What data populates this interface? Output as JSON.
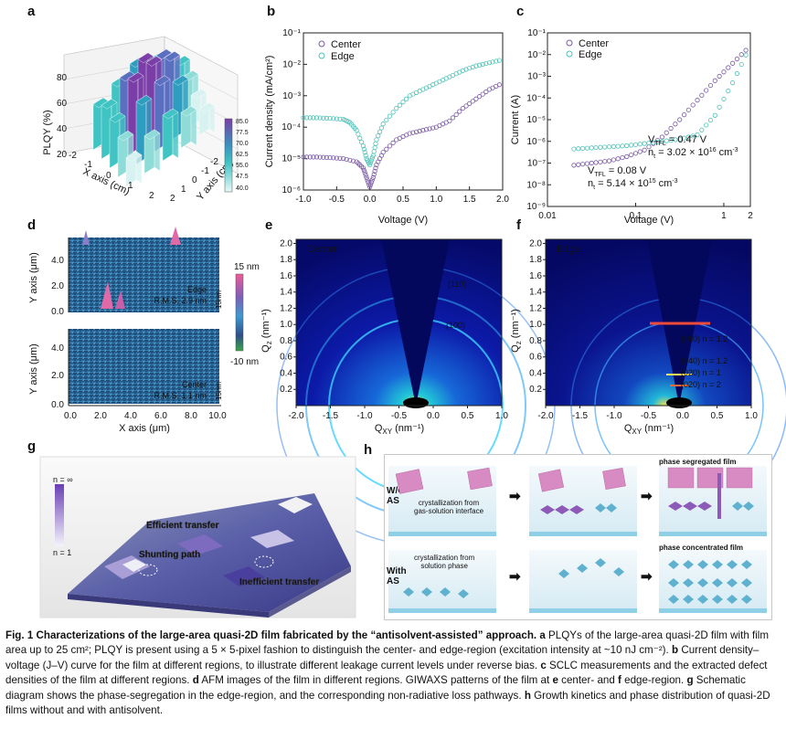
{
  "panels": {
    "a": "a",
    "b": "b",
    "c": "c",
    "d": "d",
    "e": "e",
    "f": "f",
    "g": "g",
    "h": "h"
  },
  "panel_a": {
    "zlabel": "PLQY (%)",
    "xlabel": "X axis (cm)",
    "ylabel": "Y axis (cm)",
    "zticks": [
      "20",
      "40",
      "60",
      "80"
    ],
    "xticks": [
      "-2",
      "-1",
      "0",
      "1",
      "2"
    ],
    "yticks": [
      "-2",
      "-1",
      "0",
      "1",
      "2"
    ],
    "colorbar_ticks": [
      "85.0",
      "77.5",
      "70.0",
      "62.5",
      "55.0",
      "47.5",
      "40.0"
    ],
    "colors": {
      "low": "#e2f5f6",
      "mid": "#3fc3c3",
      "high": "#7b3ea8"
    }
  },
  "chart_data": [
    {
      "type": "line",
      "panel": "b",
      "title": "",
      "xlabel": "Voltage (V)",
      "ylabel": "Current density (mA/cm²)",
      "xlim": [
        -1.0,
        2.0
      ],
      "ylim_log10": [
        -6,
        -1
      ],
      "xticks": [
        "-1.0",
        "-0.5",
        "0.0",
        "0.5",
        "1.0",
        "1.5",
        "2.0"
      ],
      "yticks": [
        "10⁻⁶",
        "10⁻⁵",
        "10⁻⁴",
        "10⁻³",
        "10⁻²",
        "10⁻¹"
      ],
      "series": [
        {
          "name": "Center",
          "color": "#7b5aa6",
          "x": [
            -1.0,
            -0.8,
            -0.6,
            -0.4,
            -0.2,
            -0.1,
            -0.05,
            0.0,
            0.05,
            0.1,
            0.2,
            0.4,
            0.6,
            0.8,
            1.0,
            1.2,
            1.4,
            1.6,
            1.8,
            2.0
          ],
          "log10y": [
            -4.95,
            -4.95,
            -4.97,
            -5.0,
            -5.1,
            -5.3,
            -5.6,
            -5.9,
            -5.6,
            -5.2,
            -4.8,
            -4.4,
            -4.2,
            -4.1,
            -4.0,
            -3.8,
            -3.4,
            -3.1,
            -2.8,
            -2.6
          ]
        },
        {
          "name": "Edge",
          "color": "#4fc3b8",
          "x": [
            -1.0,
            -0.8,
            -0.6,
            -0.4,
            -0.3,
            -0.2,
            -0.1,
            -0.05,
            0.0,
            0.05,
            0.1,
            0.2,
            0.4,
            0.6,
            0.8,
            1.0,
            1.2,
            1.4,
            1.6,
            1.8,
            2.0
          ],
          "log10y": [
            -3.7,
            -3.7,
            -3.72,
            -3.75,
            -3.85,
            -4.1,
            -4.6,
            -5.0,
            -5.2,
            -4.9,
            -4.4,
            -3.9,
            -3.4,
            -3.0,
            -2.8,
            -2.6,
            -2.4,
            -2.2,
            -2.05,
            -1.95,
            -1.85
          ]
        }
      ],
      "legend": [
        "Center",
        "Edge"
      ]
    },
    {
      "type": "line",
      "panel": "c",
      "xlabel": "Voltage (V)",
      "ylabel": "Current (A)",
      "xlim_log10": [
        -2,
        0.301
      ],
      "ylim_log10": [
        -9,
        -1
      ],
      "xticks": [
        "0.01",
        "0.1",
        "1",
        "2"
      ],
      "yticks": [
        "10⁻⁹",
        "10⁻⁸",
        "10⁻⁷",
        "10⁻⁶",
        "10⁻⁵",
        "10⁻⁴",
        "10⁻³",
        "10⁻²",
        "10⁻¹"
      ],
      "series": [
        {
          "name": "Center",
          "color": "#7b5aa6",
          "log10x": [
            -1.7,
            -1.5,
            -1.3,
            -1.1,
            -0.9,
            -0.7,
            -0.5,
            -0.3,
            -0.1,
            0.1,
            0.3
          ],
          "log10y": [
            -7.1,
            -7.0,
            -6.9,
            -6.7,
            -6.4,
            -5.8,
            -5.0,
            -4.1,
            -3.2,
            -2.4,
            -1.6
          ]
        },
        {
          "name": "Edge",
          "color": "#4fc3b8",
          "log10x": [
            -1.7,
            -1.5,
            -1.3,
            -1.1,
            -0.9,
            -0.7,
            -0.5,
            -0.3,
            -0.1,
            0.1,
            0.3
          ],
          "log10y": [
            -6.35,
            -6.3,
            -6.25,
            -6.2,
            -6.1,
            -6.0,
            -5.9,
            -5.7,
            -4.8,
            -3.3,
            -1.6
          ]
        }
      ],
      "legend": [
        "Center",
        "Edge"
      ],
      "annotations": [
        {
          "text1": "V",
          "sub1": "TFL",
          "text2": " = 0.47 V",
          "text3": "n",
          "sub3": "t",
          "text4": " = 3.02 × 10",
          "sup4": "16",
          "text5": " cm",
          "sup5": "-3",
          "color": "#4fc3b8"
        },
        {
          "text1": "V",
          "sub1": "TFL",
          "text2": " = 0.08 V",
          "text3": "n",
          "sub3": "t",
          "text4": " = 5.14 × 10",
          "sup4": "15",
          "text5": " cm",
          "sup5": "-3",
          "color": "#7b5aa6"
        }
      ]
    }
  ],
  "panel_d": {
    "top": {
      "label": "Edge",
      "rms": "R.M.S. 2.9 nm"
    },
    "bottom": {
      "label": "Center",
      "rms": "R.M.S. 1.1 nm"
    },
    "ylabel": "Y axis (μm)",
    "xlabel": "X axis (μm)",
    "yticks": [
      "0.0",
      "2.0",
      "4.0"
    ],
    "xticks": [
      "0.0",
      "2.0",
      "4.0",
      "6.0",
      "8.0",
      "10.0"
    ],
    "scale": "15nm",
    "colorbar_top": "15 nm",
    "colorbar_bottom": "-10 nm"
  },
  "panel_e": {
    "tag": "Center",
    "ylabel": "Q",
    "ysub": "z",
    "yunit": " (nm⁻¹)",
    "xlabel": "Q",
    "xsub": "XY",
    "xunit": " (nm⁻¹)",
    "yticks": [
      "0.2",
      "0.4",
      "0.6",
      "0.8",
      "1.0",
      "1.2",
      "1.4",
      "1.6",
      "1.8",
      "2.0"
    ],
    "xticks": [
      "-2.0",
      "-1.5",
      "-1.0",
      "-0.5",
      "0.0",
      "0.5",
      "1.0"
    ],
    "peaks": [
      "(110)",
      "(100)"
    ]
  },
  "panel_f": {
    "tag": "Edge",
    "yticks": [
      "0.2",
      "0.4",
      "0.6",
      "0.8",
      "1.0",
      "1.2",
      "1.4",
      "1.6",
      "1.8",
      "2.0"
    ],
    "xticks": [
      "-2.0",
      "-1.5",
      "-1.0",
      "-0.5",
      "0.0",
      "0.5",
      "1.0"
    ],
    "peaks": [
      "(060) n = 1.2",
      "(040) n = 1.2",
      "(020) n = 1",
      "(020) n = 2"
    ]
  },
  "panel_g": {
    "legend_top": "n = ∞",
    "legend_bottom": "n = 1",
    "labels": [
      "Efficient transfer",
      "Shunting path",
      "Inefficient transfer"
    ]
  },
  "panel_h": {
    "row1": "W/O\nAS",
    "row2": "With\nAS",
    "text1": "crystallization from\ngas-solution interface",
    "text2": "crystallization from\nsolution phase",
    "result1": "phase segregated film",
    "result2": "phase concentrated film"
  },
  "caption": {
    "title": "Fig. 1 Characterizations of the large-area quasi-2D film fabricated by the “antisolvent-assisted” approach.",
    "a_label": "a",
    "a_text": " PLQYs of the large-area quasi-2D film with film area up to 25 cm²; PLQY is present using a 5 × 5-pixel fashion to distinguish the center- and edge-region (excitation intensity at ~10 nJ cm⁻²).",
    "b_label": "b",
    "b_text": " Current density–voltage (J–V) curve for the film at different regions, to illustrate different leakage current levels under reverse bias.",
    "c_label": "c",
    "c_text": " SCLC measurements and the extracted defect densities of the film at different regions.",
    "d_label": "d",
    "d_text": " AFM images of the film in different regions. GIWAXS patterns of the film at",
    "e_label": "e",
    "e_text": " center- and",
    "f_label": "f",
    "f_text": " edge-region.",
    "g_label": "g",
    "g_text": " Schematic diagram shows the phase-segregation in the edge-region, and the corresponding non-radiative loss pathways.",
    "h_label": "h",
    "h_text": " Growth kinetics and phase distribution of quasi-2D films without and with antisolvent."
  }
}
